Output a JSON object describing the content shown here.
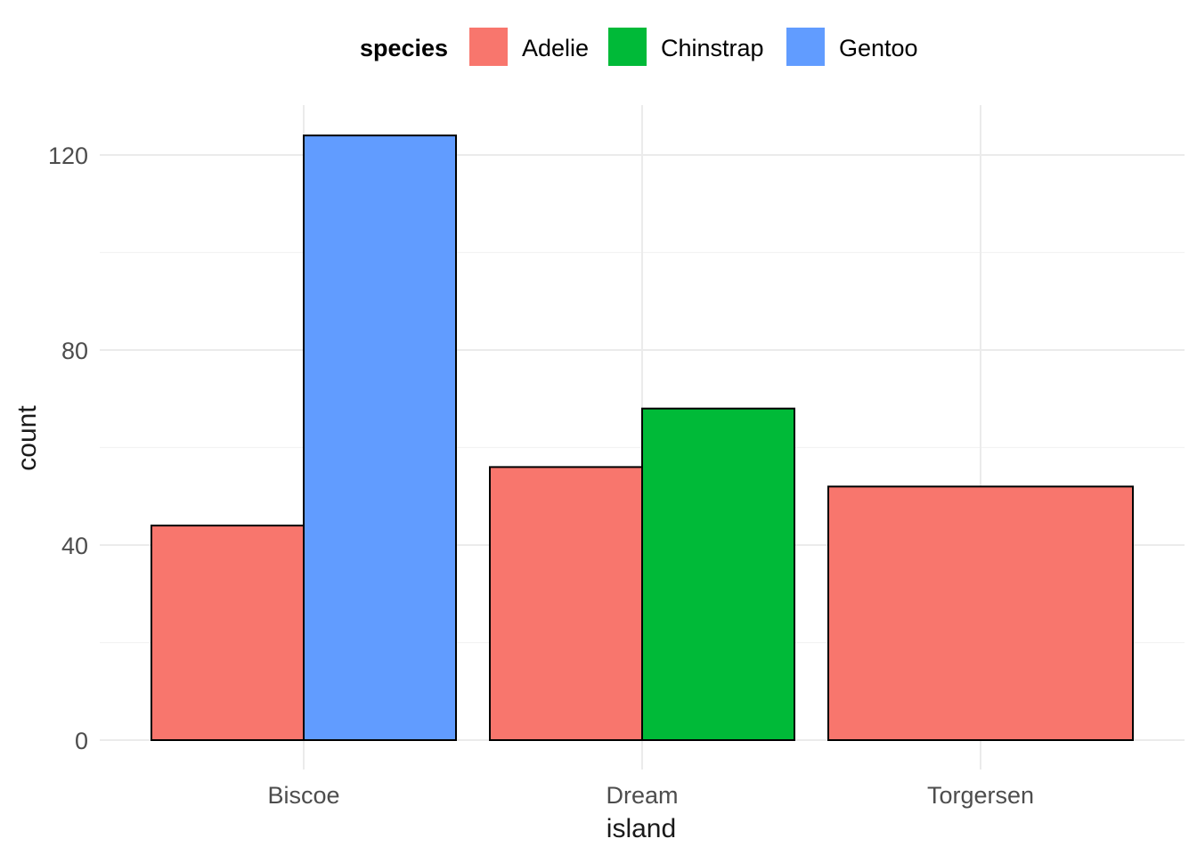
{
  "chart_data": {
    "type": "bar",
    "layout": "dodge",
    "categories": [
      "Biscoe",
      "Dream",
      "Torgersen"
    ],
    "series": [
      {
        "name": "Adelie",
        "color": "#F8766D",
        "values": [
          44,
          56,
          52
        ]
      },
      {
        "name": "Chinstrap",
        "color": "#00BA38",
        "values": [
          null,
          68,
          null
        ]
      },
      {
        "name": "Gentoo",
        "color": "#619CFF",
        "values": [
          124,
          null,
          null
        ]
      }
    ],
    "xlabel": "island",
    "ylabel": "count",
    "ylim": [
      0,
      130
    ],
    "yticks": [
      0,
      40,
      80,
      120
    ],
    "ytick_labels": [
      "0",
      "40",
      "80",
      "120"
    ],
    "legend_title": "species",
    "legend_position": "top",
    "grid": true
  }
}
